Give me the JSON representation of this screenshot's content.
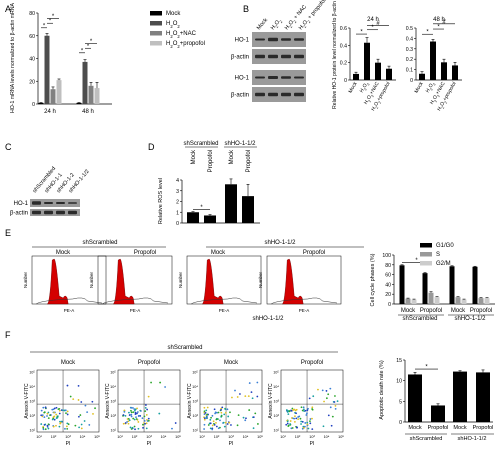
{
  "panel_labels": [
    "A",
    "B",
    "C",
    "D",
    "E",
    "F"
  ],
  "colors": {
    "black": "#000000",
    "dark_gray": "#4d4d4d",
    "gray": "#808080",
    "light_gray": "#bfbfbf",
    "blot_bg": "#9a9a9a",
    "band": "#2a2a2a",
    "flow_fill": "#d40000"
  },
  "chart_data": [
    {
      "id": "A",
      "type": "bar",
      "ylabel": "HO-1 mRNA levels normalized to β-actin mRNA",
      "categories": [
        "24 h",
        "48 h"
      ],
      "ylim": [
        0,
        80
      ],
      "yticks": [
        0,
        20,
        40,
        60,
        80
      ],
      "series": [
        {
          "name": "Mock",
          "color": "#000000",
          "values": [
            1,
            1
          ],
          "errors": [
            0.3,
            0.3
          ]
        },
        {
          "name": "H2O2",
          "color": "#4d4d4d",
          "values": [
            60,
            37
          ],
          "errors": [
            2,
            2
          ]
        },
        {
          "name": "H2O2+NAC",
          "color": "#808080",
          "values": [
            13,
            16
          ],
          "errors": [
            2,
            3
          ]
        },
        {
          "name": "H2O2+propofol",
          "color": "#bfbfbf",
          "values": [
            21,
            14
          ],
          "errors": [
            1,
            5
          ]
        }
      ],
      "significance": [
        "*",
        "*",
        "*",
        "*",
        "*",
        "*"
      ]
    },
    {
      "id": "B-24h",
      "type": "bar",
      "title": "24 h",
      "ylabel": "Relative HO-1 protein level normalized to β-actin",
      "categories": [
        "Mock",
        "H2O2",
        "H2O2+NAC",
        "H2O2+propofol"
      ],
      "ylim": [
        0,
        0.6
      ],
      "yticks": [
        0,
        0.2,
        0.4,
        0.6
      ],
      "values": [
        0.07,
        0.43,
        0.2,
        0.13
      ],
      "errors": [
        0.02,
        0.06,
        0.04,
        0.03
      ],
      "significance": [
        "*",
        "*",
        "#"
      ]
    },
    {
      "id": "B-48h",
      "type": "bar",
      "title": "48 h",
      "categories": [
        "Mock",
        "H2O2",
        "H2O2+NAC",
        "H2O2+propofol"
      ],
      "ylim": [
        0,
        0.5
      ],
      "yticks": [
        0,
        0.1,
        0.2,
        0.3,
        0.4,
        0.5
      ],
      "values": [
        0.06,
        0.37,
        0.17,
        0.14
      ],
      "errors": [
        0.02,
        0.02,
        0.03,
        0.03
      ],
      "significance": [
        "*",
        "*",
        "#"
      ]
    },
    {
      "id": "D",
      "type": "bar",
      "ylabel": "Relative ROS level",
      "groups": [
        "shScrambled",
        "shHO-1-1/2"
      ],
      "categories": [
        "Mock",
        "Propofol",
        "Mock",
        "Propofol"
      ],
      "ylim": [
        0,
        4
      ],
      "yticks": [
        0,
        1,
        2,
        3,
        4
      ],
      "values": [
        1.0,
        0.7,
        3.6,
        2.5
      ],
      "errors": [
        0.05,
        0.08,
        0.5,
        1.1
      ],
      "significance": [
        "*"
      ]
    },
    {
      "id": "E-bar",
      "type": "bar",
      "ylabel": "Cell cycle phases (%)",
      "groups": [
        "shScrambled",
        "shHO-1-1/2"
      ],
      "categories": [
        "Mock",
        "Propofol",
        "Mock",
        "Propofol"
      ],
      "ylim": [
        0,
        100
      ],
      "yticks": [
        0,
        20,
        40,
        60,
        80,
        100
      ],
      "series": [
        {
          "name": "G1/G0",
          "color": "#000000",
          "values": [
            79,
            63,
            77,
            76
          ],
          "errors": [
            1,
            1,
            1,
            1
          ]
        },
        {
          "name": "S",
          "color": "#999999",
          "values": [
            11,
            23,
            14,
            12
          ],
          "errors": [
            1,
            2,
            1,
            1
          ]
        },
        {
          "name": "G2/M",
          "color": "#cccccc",
          "values": [
            9,
            14,
            9,
            12
          ],
          "errors": [
            1,
            1,
            1,
            1
          ]
        }
      ],
      "significance": [
        "*"
      ]
    },
    {
      "id": "F-bar",
      "type": "bar",
      "ylabel": "Apoptotic death rate (%)",
      "groups": [
        "shScrambled",
        "shHO-1-1/2"
      ],
      "categories": [
        "Mock",
        "Propofol",
        "Mock",
        "Propofol"
      ],
      "ylim": [
        0,
        15
      ],
      "yticks": [
        0,
        5,
        10,
        15
      ],
      "values": [
        11.5,
        4.0,
        12.2,
        12.0
      ],
      "errors": [
        0.5,
        0.4,
        0.2,
        0.6
      ],
      "significance": [
        "*"
      ]
    }
  ],
  "panelB": {
    "lane_labels": [
      "Mock",
      "H2O2",
      "H2O2 + NAC",
      "H2O2 + propofol"
    ],
    "blot_labels": [
      "HO-1",
      "β-actin",
      "HO-1",
      "β-actin"
    ],
    "chart_titles": [
      "24 h",
      "48 h"
    ],
    "ylabel": "Relative HO-1 protein level normalized to β-actin"
  },
  "panelC": {
    "lane_labels": [
      "shScrambled",
      "shHO-1-1",
      "shHO-1-2",
      "shHO-1-1/2"
    ],
    "blot_labels": [
      "HO-1",
      "β-actin"
    ]
  },
  "panelD": {
    "group_labels": [
      "shScrambled",
      "shHO-1-1/2"
    ],
    "lane_labels": [
      "Mock",
      "Propofol",
      "Mock",
      "Propofol"
    ]
  },
  "panelE": {
    "group_labels": [
      "shScrambled",
      "shHO-1-1/2"
    ],
    "plot_titles": [
      "Mock",
      "Propofol",
      "Mock",
      "Propofol"
    ],
    "axis_x": "PE-A",
    "axis_y": "Number",
    "bar_legend": [
      "G1/G0",
      "S",
      "G2/M"
    ],
    "bottom_group": "shHO-1-1/2"
  },
  "panelF": {
    "group_label": "shScrambled",
    "plot_titles": [
      "Mock",
      "Propofol",
      "Mock",
      "Propofol"
    ],
    "axis_x": "PI",
    "axis_y": "Annexin V-FITC",
    "x_ticks": [
      "10¹",
      "10²",
      "10³",
      "10⁴",
      "10⁵"
    ],
    "y_ticks": [
      "10¹",
      "10²",
      "10³",
      "10⁴",
      "10⁵"
    ]
  }
}
